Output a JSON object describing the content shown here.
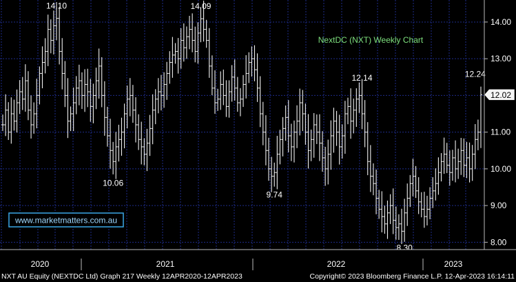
{
  "chart_data": {
    "type": "ohlc",
    "title": "NextDC (NXT) Weekly Chart",
    "current_price_label": "12.02",
    "current_price": 12.02,
    "y_ticks": [
      "14.00",
      "13.00",
      "12.00",
      "11.00",
      "10.00",
      "9.00",
      "8.00"
    ],
    "y_tick_values": [
      14,
      13,
      12,
      11,
      10,
      9,
      8
    ],
    "ylim": [
      7.8,
      14.6
    ],
    "x_ticks": [
      "2020",
      "2021",
      "2022",
      "2023"
    ],
    "annotations": [
      {
        "label": "14.10",
        "week": 19,
        "value": 14.1,
        "pos": "above"
      },
      {
        "label": "14.09",
        "week": 70,
        "value": 14.09,
        "pos": "above"
      },
      {
        "label": "10.06",
        "week": 39,
        "value": 10.06,
        "pos": "below"
      },
      {
        "label": "9.74",
        "week": 96,
        "value": 9.74,
        "pos": "below"
      },
      {
        "label": "12.14",
        "week": 127,
        "value": 12.14,
        "pos": "above"
      },
      {
        "label": "8.30",
        "week": 142,
        "value": 8.3,
        "pos": "below"
      },
      {
        "label": "12.24",
        "week": 167,
        "value": 12.24,
        "pos": "above"
      }
    ],
    "series": [
      {
        "values": [
          11.2,
          11.6,
          11.0,
          11.5,
          11.3,
          11.8,
          12.1,
          11.9,
          12.4,
          11.6,
          11.2,
          11.5,
          12.0,
          12.6,
          12.9,
          13.2,
          13.8,
          13.5,
          13.9,
          14.1,
          13.2,
          12.6,
          12.0,
          11.3,
          11.5,
          11.8,
          12.2,
          12.4,
          12.0,
          12.3,
          12.1,
          11.7,
          12.0,
          12.4,
          12.8,
          12.0,
          11.4,
          10.9,
          10.5,
          10.2,
          10.6,
          10.8,
          11.0,
          11.5,
          11.9,
          12.0,
          11.6,
          11.2,
          10.8,
          10.6,
          10.4,
          10.7,
          11.1,
          11.6,
          11.9,
          12.1,
          12.0,
          12.3,
          12.6,
          12.9,
          13.1,
          13.2,
          13.0,
          13.5,
          13.3,
          13.6,
          13.8,
          13.5,
          13.2,
          13.7,
          14.09,
          13.8,
          13.5,
          12.8,
          12.2,
          11.8,
          11.9,
          12.3,
          12.0,
          11.7,
          12.1,
          12.5,
          12.2,
          11.8,
          11.9,
          12.3,
          12.6,
          12.9,
          13.0,
          12.7,
          12.2,
          11.5,
          11.0,
          10.5,
          10.0,
          9.8,
          9.9,
          10.4,
          10.8,
          11.1,
          11.4,
          10.9,
          10.6,
          11.0,
          11.3,
          11.8,
          11.5,
          11.0,
          10.5,
          10.8,
          11.2,
          11.0,
          10.7,
          10.3,
          10.0,
          10.4,
          10.9,
          11.3,
          11.0,
          10.6,
          10.9,
          11.5,
          11.7,
          11.3,
          11.6,
          11.9,
          12.0,
          11.5,
          11.0,
          10.2,
          9.8,
          9.6,
          9.2,
          8.9,
          8.7,
          8.5,
          8.8,
          9.0,
          8.6,
          8.4,
          8.5,
          8.3,
          8.8,
          9.2,
          9.6,
          9.8,
          9.4,
          9.1,
          8.9,
          8.7,
          8.9,
          9.2,
          9.4,
          9.6,
          9.9,
          10.2,
          10.4,
          10.1,
          9.9,
          10.3,
          10.0,
          10.2,
          10.5,
          10.1,
          10.3,
          10.0,
          10.4,
          10.8,
          11.0,
          12.02
        ]
      }
    ]
  },
  "watermark": "www.marketmatters.com.au",
  "footer": {
    "left": "NXT AU Equity (NEXTDC Ltd) Graph 217  Weekly 12APR2020-12APR2023",
    "right": "Copyright© 2023 Bloomberg Finance L.P.    12-Apr-2023 16:14:11"
  },
  "colors": {
    "background": "#000000",
    "grid": "#1e2c8c",
    "bars": "#f2f2f2",
    "title": "#7ee07e",
    "axis_text": "#ffffff",
    "watermark_text": "#9fd8ff",
    "watermark_border": "#3aa8e8",
    "label_box": "#f5f5f5"
  }
}
